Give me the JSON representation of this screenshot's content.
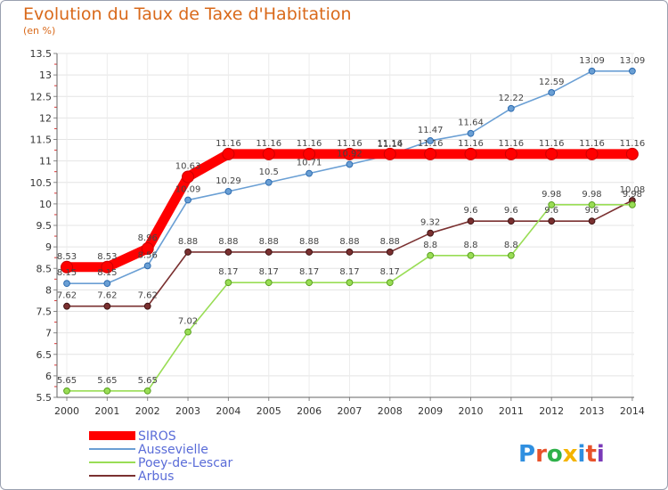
{
  "title": "Evolution du Taux de Taxe d'Habitation",
  "unit_label": "(en %)",
  "logo_text": "Proxiti",
  "chart_data": {
    "type": "line",
    "title": "Evolution du Taux de Taxe d'Habitation",
    "subtitle": "(en %)",
    "xlabel": "",
    "ylabel": "",
    "x": [
      "2000",
      "2001",
      "2002",
      "2003",
      "2004",
      "2005",
      "2006",
      "2007",
      "2008",
      "2009",
      "2010",
      "2011",
      "2012",
      "2013",
      "2014"
    ],
    "y_ticks": [
      "5.5",
      "6",
      "6.5",
      "7",
      "7.5",
      "8",
      "8.5",
      "9",
      "9.5",
      "10",
      "10.5",
      "11",
      "11.5",
      "12",
      "12.5",
      "13",
      "13.5"
    ],
    "ylim": [
      5.5,
      13.5
    ],
    "grid": true,
    "legend_position": "bottom-left",
    "series": [
      {
        "name": "SIROS",
        "color": "#ff0000",
        "values": [
          8.53,
          8.53,
          8.96,
          10.63,
          11.16,
          11.16,
          11.16,
          11.16,
          11.16,
          11.16,
          11.16,
          11.16,
          11.16,
          11.16,
          11.16
        ],
        "labels": [
          "8.53",
          "8.53",
          "8.96",
          "10.63",
          "11.16",
          "11.16",
          "11.16",
          "11.16",
          "11.16",
          "11.16",
          "11.16",
          "11.16",
          "11.16",
          "11.16",
          "11.16"
        ]
      },
      {
        "name": "Aussevielle",
        "color": "#6a9fd4",
        "values": [
          8.15,
          8.15,
          8.56,
          10.09,
          10.29,
          10.5,
          10.71,
          10.92,
          11.14,
          11.47,
          11.64,
          12.22,
          12.59,
          13.09,
          13.09
        ],
        "labels": [
          "8.15",
          "8.15",
          "8.56",
          "10.09",
          "10.29",
          "10.5",
          "10.71",
          "10.92",
          "11.14",
          "11.47",
          "11.64",
          "12.22",
          "12.59",
          "13.09",
          "13.09"
        ]
      },
      {
        "name": "Poey-de-Lescar",
        "color": "#99dd55",
        "values": [
          5.65,
          5.65,
          5.65,
          7.02,
          8.17,
          8.17,
          8.17,
          8.17,
          8.17,
          8.8,
          8.8,
          8.8,
          9.98,
          9.98,
          9.98
        ],
        "labels": [
          "5.65",
          "5.65",
          "5.65",
          "7.02",
          "8.17",
          "8.17",
          "8.17",
          "8.17",
          "8.17",
          "8.8",
          "8.8",
          "8.8",
          "9.98",
          "9.98",
          "9.98"
        ]
      },
      {
        "name": "Arbus",
        "color": "#7a3030",
        "values": [
          7.62,
          7.62,
          7.62,
          8.88,
          8.88,
          8.88,
          8.88,
          8.88,
          8.88,
          9.32,
          9.6,
          9.6,
          9.6,
          9.6,
          10.08
        ],
        "labels": [
          "7.62",
          "7.62",
          "7.62",
          "8.88",
          "8.88",
          "8.88",
          "8.88",
          "8.88",
          "8.88",
          "9.32",
          "9.6",
          "9.6",
          "9.6",
          "9.6",
          "10.08"
        ]
      }
    ]
  }
}
